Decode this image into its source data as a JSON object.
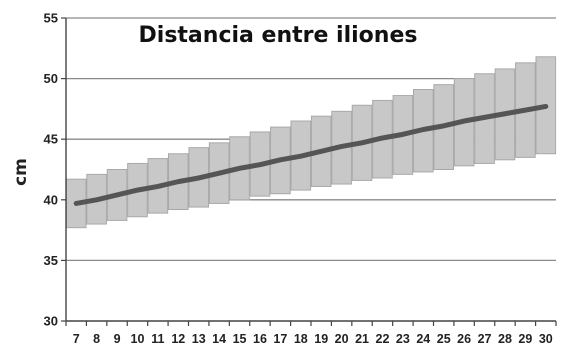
{
  "chart_data": {
    "type": "bar",
    "title": "Distancia entre iliones",
    "xlabel": "",
    "ylabel": "cm",
    "ylim": [
      30,
      55
    ],
    "yticks": [
      30,
      35,
      40,
      45,
      50,
      55
    ],
    "grid": "horizontal",
    "categories": [
      "7",
      "8",
      "9",
      "10",
      "11",
      "12",
      "13",
      "14",
      "15",
      "16",
      "17",
      "18",
      "19",
      "20",
      "21",
      "22",
      "23",
      "24",
      "25",
      "26",
      "27",
      "28",
      "29",
      "30"
    ],
    "series": [
      {
        "role": "range",
        "low": [
          37.7,
          38.0,
          38.3,
          38.6,
          38.9,
          39.2,
          39.4,
          39.7,
          40.0,
          40.3,
          40.5,
          40.8,
          41.1,
          41.3,
          41.6,
          41.8,
          42.1,
          42.3,
          42.5,
          42.8,
          43.0,
          43.3,
          43.5,
          43.8
        ],
        "high": [
          41.7,
          42.1,
          42.5,
          43.0,
          43.4,
          43.8,
          44.3,
          44.7,
          45.2,
          45.6,
          46.0,
          46.5,
          46.9,
          47.3,
          47.8,
          48.2,
          48.6,
          49.1,
          49.5,
          50.0,
          50.4,
          50.8,
          51.3,
          51.8
        ]
      },
      {
        "role": "mean",
        "values": [
          39.7,
          40.0,
          40.4,
          40.8,
          41.1,
          41.5,
          41.8,
          42.2,
          42.6,
          42.9,
          43.3,
          43.6,
          44.0,
          44.4,
          44.7,
          45.1,
          45.4,
          45.8,
          46.1,
          46.5,
          46.8,
          47.1,
          47.4,
          47.7
        ]
      }
    ],
    "colors": {
      "range_fill": "#c8c8c8",
      "range_stroke": "#a9a9a9",
      "mean_line": "#555555",
      "grid": "#8a8a8a"
    }
  }
}
